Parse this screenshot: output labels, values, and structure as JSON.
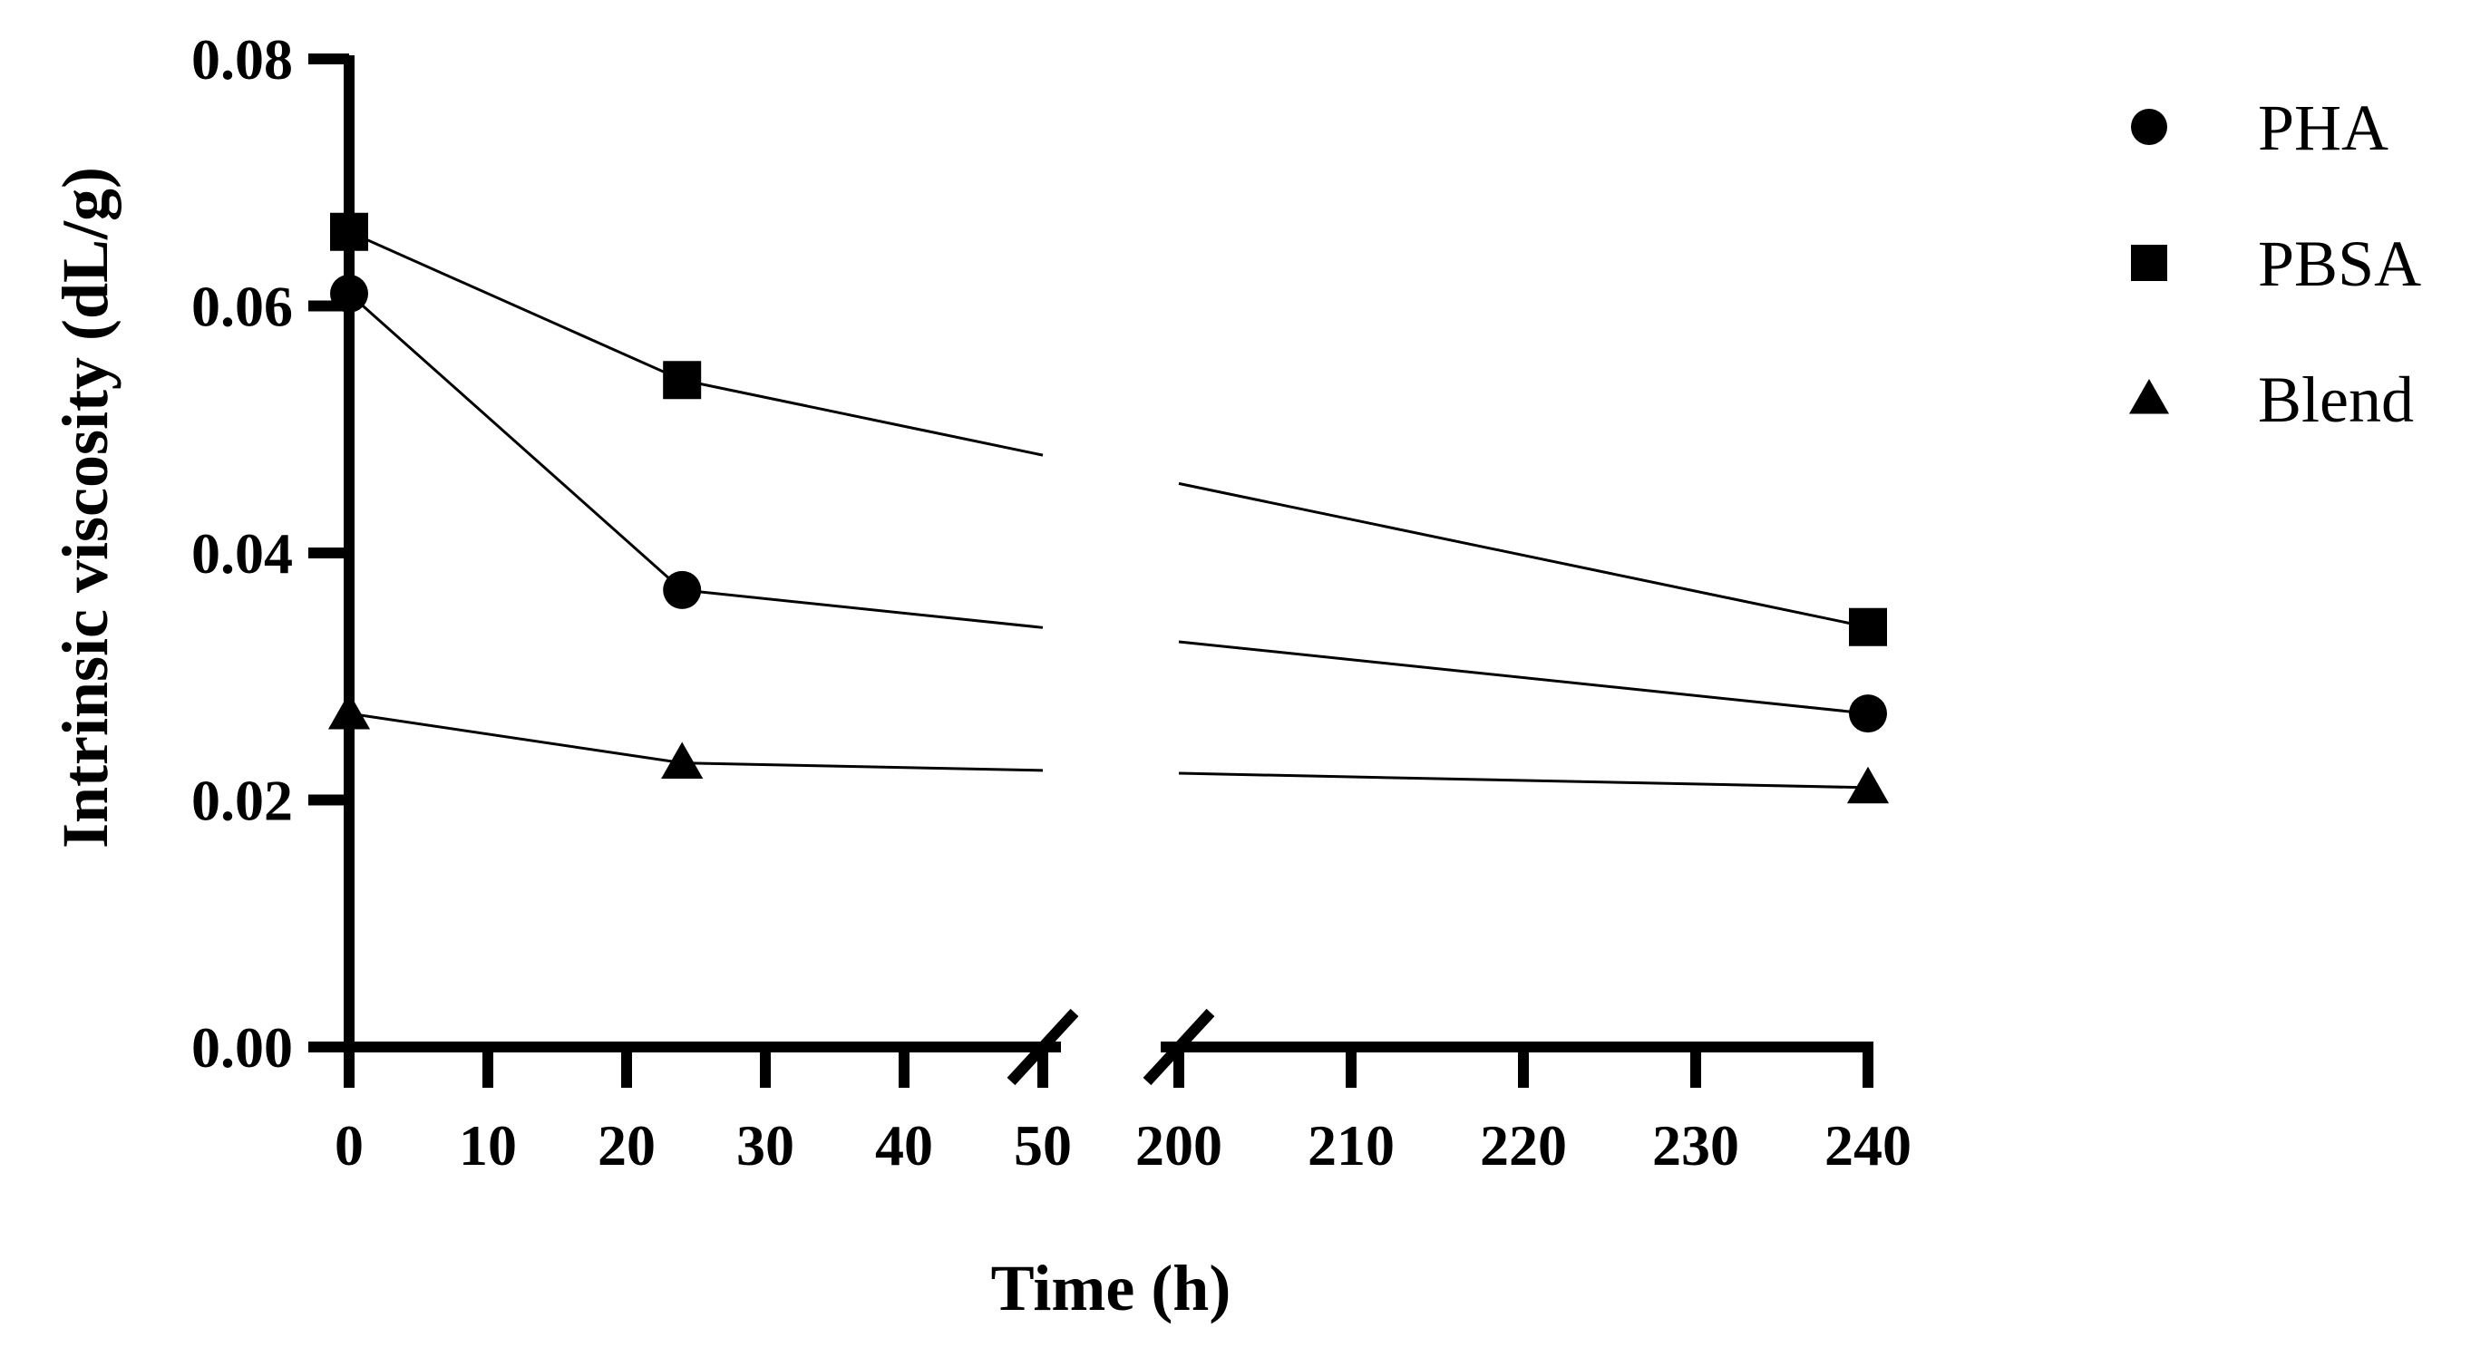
{
  "chart_data": {
    "type": "line",
    "title": "",
    "xlabel": "Time (h)",
    "ylabel": "Intrinsic viscosity (dL/g)",
    "ylim": [
      0,
      0.08
    ],
    "y_ticks": [
      "0.00",
      "0.02",
      "0.04",
      "0.06",
      "0.08"
    ],
    "x_break": {
      "left_range": [
        0,
        50
      ],
      "right_range": [
        200,
        240
      ]
    },
    "x_ticks": [
      "0",
      "10",
      "20",
      "30",
      "40",
      "50",
      "200",
      "210",
      "220",
      "230",
      "240"
    ],
    "x": [
      0,
      24,
      240
    ],
    "series": [
      {
        "name": "PHA",
        "marker": "circle",
        "values": [
          0.061,
          0.037,
          0.027
        ]
      },
      {
        "name": "PBSA",
        "marker": "square",
        "values": [
          0.066,
          0.054,
          0.034
        ]
      },
      {
        "name": "Blend",
        "marker": "triangle",
        "values": [
          0.027,
          0.023,
          0.021
        ]
      }
    ],
    "legend_position": "top-right",
    "grid": false,
    "colors": {
      "line": "#000000",
      "marker": "#000000"
    }
  }
}
